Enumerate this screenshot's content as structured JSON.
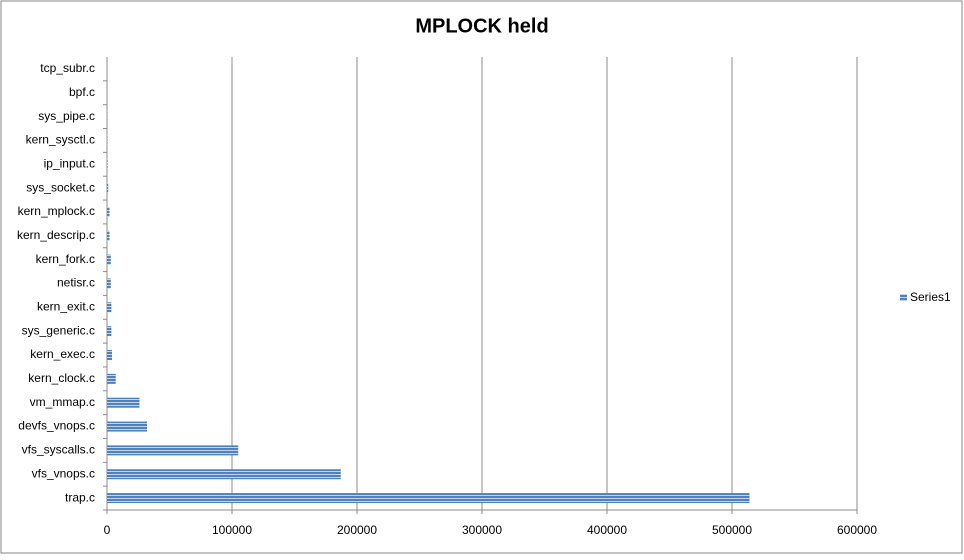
{
  "chart_data": {
    "type": "bar",
    "orientation": "horizontal",
    "title": "MPLOCK held",
    "categories": [
      "trap.c",
      "vfs_vnops.c",
      "vfs_syscalls.c",
      "devfs_vnops.c",
      "vm_mmap.c",
      "kern_clock.c",
      "kern_exec.c",
      "sys_generic.c",
      "kern_exit.c",
      "netisr.c",
      "kern_fork.c",
      "kern_descrip.c",
      "kern_mplock.c",
      "sys_socket.c",
      "ip_input.c",
      "kern_sysctl.c",
      "sys_pipe.c",
      "bpf.c",
      "tcp_subr.c"
    ],
    "series": [
      {
        "name": "Series1",
        "color": "#4f81bd",
        "values": [
          514000,
          187000,
          105000,
          32000,
          26000,
          7000,
          4000,
          3500,
          3500,
          3000,
          3000,
          2000,
          2000,
          1000,
          500,
          300,
          200,
          100,
          100
        ]
      }
    ],
    "xlim": [
      0,
      600000
    ],
    "xticks": [
      0,
      100000,
      200000,
      300000,
      400000,
      500000,
      600000
    ],
    "grid": true,
    "legend": "right"
  }
}
